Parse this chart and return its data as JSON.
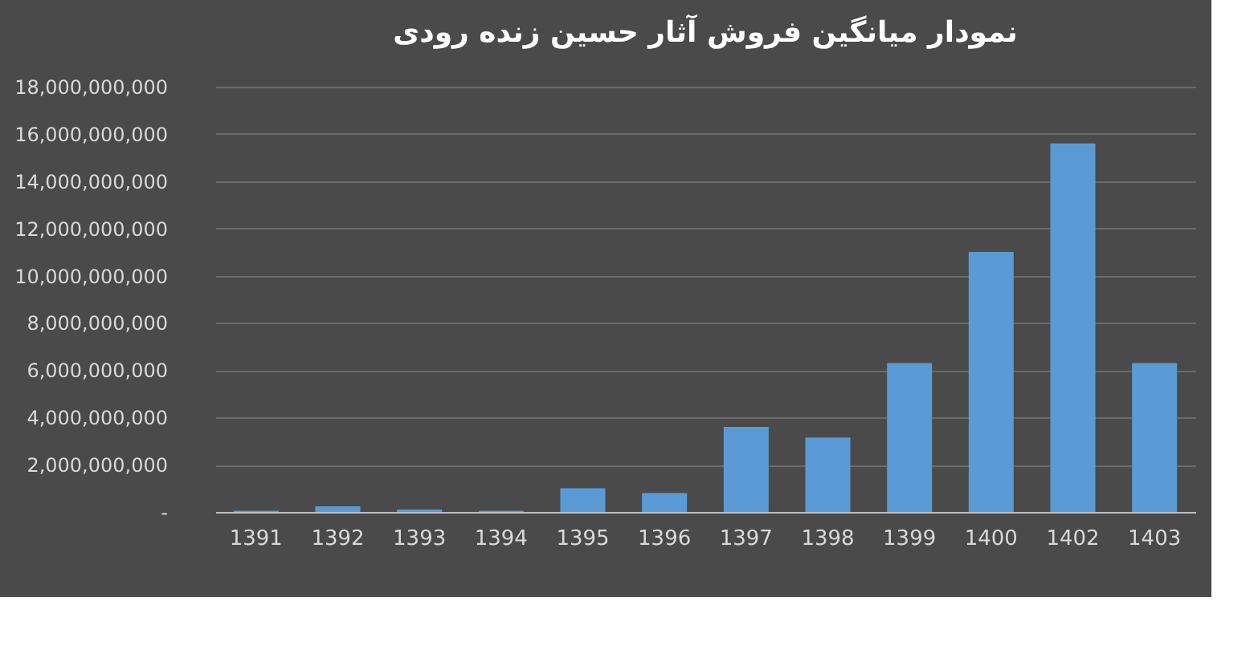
{
  "chart_data": {
    "type": "bar",
    "title": "نمودار میانگین فروش آثار حسین زنده رودی",
    "categories": [
      "1391",
      "1392",
      "1393",
      "1394",
      "1395",
      "1396",
      "1397",
      "1398",
      "1399",
      "1400",
      "1402",
      "1403"
    ],
    "values": [
      50000000,
      240000000,
      100000000,
      50000000,
      1000000000,
      800000000,
      3600000000,
      3150000000,
      6300000000,
      11000000000,
      15600000000,
      6300000000
    ],
    "color": "#5b9bd5",
    "ylim": [
      0,
      18000000000
    ],
    "yticks": [
      {
        "value": 0,
        "label": "-"
      },
      {
        "value": 2000000000,
        "label": "2,000,000,000"
      },
      {
        "value": 4000000000,
        "label": "4,000,000,000"
      },
      {
        "value": 6000000000,
        "label": "6,000,000,000"
      },
      {
        "value": 8000000000,
        "label": "8,000,000,000"
      },
      {
        "value": 10000000000,
        "label": "10,000,000,000"
      },
      {
        "value": 12000000000,
        "label": "12,000,000,000"
      },
      {
        "value": 14000000000,
        "label": "14,000,000,000"
      },
      {
        "value": 16000000000,
        "label": "16,000,000,000"
      },
      {
        "value": 18000000000,
        "label": "18,000,000,000"
      }
    ],
    "grid": "y"
  }
}
